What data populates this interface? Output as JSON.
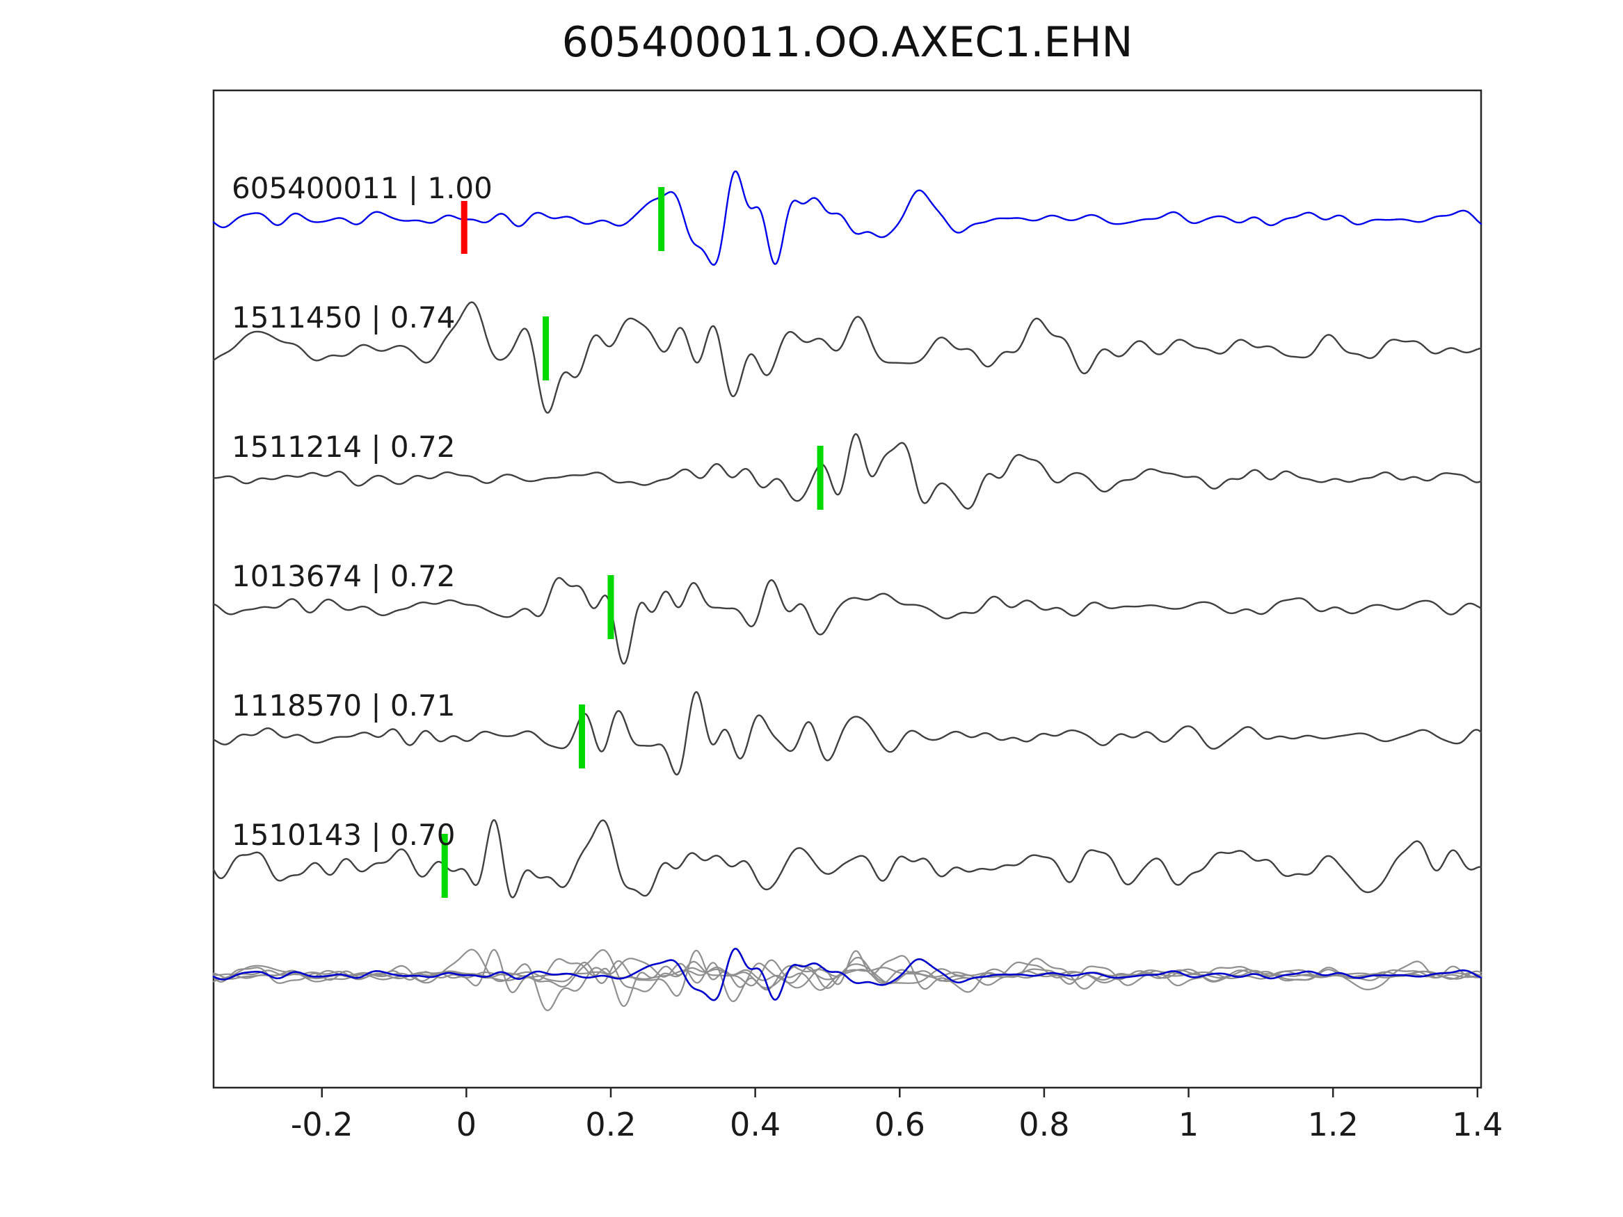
{
  "title": "605400011.OO.AXEC1.EHN",
  "chart_data": {
    "type": "line",
    "title": "605400011.OO.AXEC1.EHN",
    "xlabel": "",
    "ylabel": "",
    "xlim": [
      -0.35,
      1.405
    ],
    "grid": false,
    "legend": "none",
    "x_ticks": [
      {
        "v": -0.2,
        "label": "-0.2"
      },
      {
        "v": 0,
        "label": "0"
      },
      {
        "v": 0.2,
        "label": "0.2"
      },
      {
        "v": 0.4,
        "label": "0.4"
      },
      {
        "v": 0.6,
        "label": "0.6"
      },
      {
        "v": 0.8,
        "label": "0.8"
      },
      {
        "v": 1,
        "label": "1"
      },
      {
        "v": 1.2,
        "label": "1.2"
      },
      {
        "v": 1.4,
        "label": "1.4"
      }
    ],
    "colors": {
      "reference": "#0000ee",
      "match": "#3f3f3f",
      "pick_marker": "#00d900",
      "reference_marker": "#ff0000",
      "overlay_match": "#8f8f8f",
      "overlay_reference": "#0000cc",
      "frame": "#262626",
      "text": "#1a1a1a"
    },
    "traces": [
      {
        "id": "605400011",
        "correlation": "1.00",
        "label": "605400011 | 1.00",
        "role": "reference",
        "pick_time": 0.27,
        "reference_marker_time": -0.003,
        "amp": 85,
        "seed": 11,
        "env": {
          "base": 0.14,
          "bursts": [
            {
              "c": 0.28,
              "w": 0.06,
              "a": 0.55
            },
            {
              "c": 0.42,
              "w": 0.1,
              "a": 1.0
            },
            {
              "c": 0.6,
              "w": 0.13,
              "a": 0.45
            },
            {
              "c": -0.08,
              "w": 0.18,
              "a": 0.1
            }
          ]
        }
      },
      {
        "id": "1511450",
        "correlation": "0.74",
        "label": "1511450 | 0.74",
        "role": "match",
        "pick_time": 0.11,
        "amp": 80,
        "seed": 22,
        "env": {
          "base": 0.26,
          "bursts": [
            {
              "c": 0.07,
              "w": 0.1,
              "a": 0.85
            },
            {
              "c": 0.3,
              "w": 0.13,
              "a": 0.55
            },
            {
              "c": 0.55,
              "w": 0.22,
              "a": 0.28
            }
          ]
        }
      },
      {
        "id": "1511214",
        "correlation": "0.72",
        "label": "1511214 | 0.72",
        "role": "match",
        "pick_time": 0.49,
        "amp": 85,
        "seed": 33,
        "env": {
          "base": 0.14,
          "bursts": [
            {
              "c": 0.56,
              "w": 0.09,
              "a": 1.0
            },
            {
              "c": 0.73,
              "w": 0.1,
              "a": 0.45
            },
            {
              "c": 0.35,
              "w": 0.1,
              "a": 0.22
            }
          ]
        }
      },
      {
        "id": "1013674",
        "correlation": "0.72",
        "label": "1013674 | 0.72",
        "role": "match",
        "pick_time": 0.2,
        "amp": 80,
        "seed": 44,
        "env": {
          "base": 0.18,
          "bursts": [
            {
              "c": 0.3,
              "w": 0.1,
              "a": 1.0
            },
            {
              "c": 0.53,
              "w": 0.13,
              "a": 0.5
            },
            {
              "c": 0.16,
              "w": 0.06,
              "a": 0.4
            }
          ]
        }
      },
      {
        "id": "1118570",
        "correlation": "0.71",
        "label": "1118570 | 0.71",
        "role": "match",
        "pick_time": 0.16,
        "amp": 82,
        "seed": 55,
        "env": {
          "base": 0.16,
          "bursts": [
            {
              "c": 0.27,
              "w": 0.09,
              "a": 1.0
            },
            {
              "c": 0.46,
              "w": 0.11,
              "a": 0.5
            }
          ]
        }
      },
      {
        "id": "1510143",
        "correlation": "0.70",
        "label": "1510143 | 0.70",
        "role": "match",
        "pick_time": -0.03,
        "amp": 75,
        "seed": 66,
        "env": {
          "base": 0.3,
          "bursts": [
            {
              "c": 0.04,
              "w": 0.07,
              "a": 0.85
            },
            {
              "c": 0.3,
              "w": 0.16,
              "a": 0.45
            },
            {
              "c": 1.27,
              "w": 0.06,
              "a": 0.85
            },
            {
              "c": 0.95,
              "w": 0.3,
              "a": 0.12
            }
          ]
        }
      }
    ],
    "overlay": {
      "description": "all traces superimposed, reference in blue on top",
      "amplitude_scale": 0.55
    }
  }
}
